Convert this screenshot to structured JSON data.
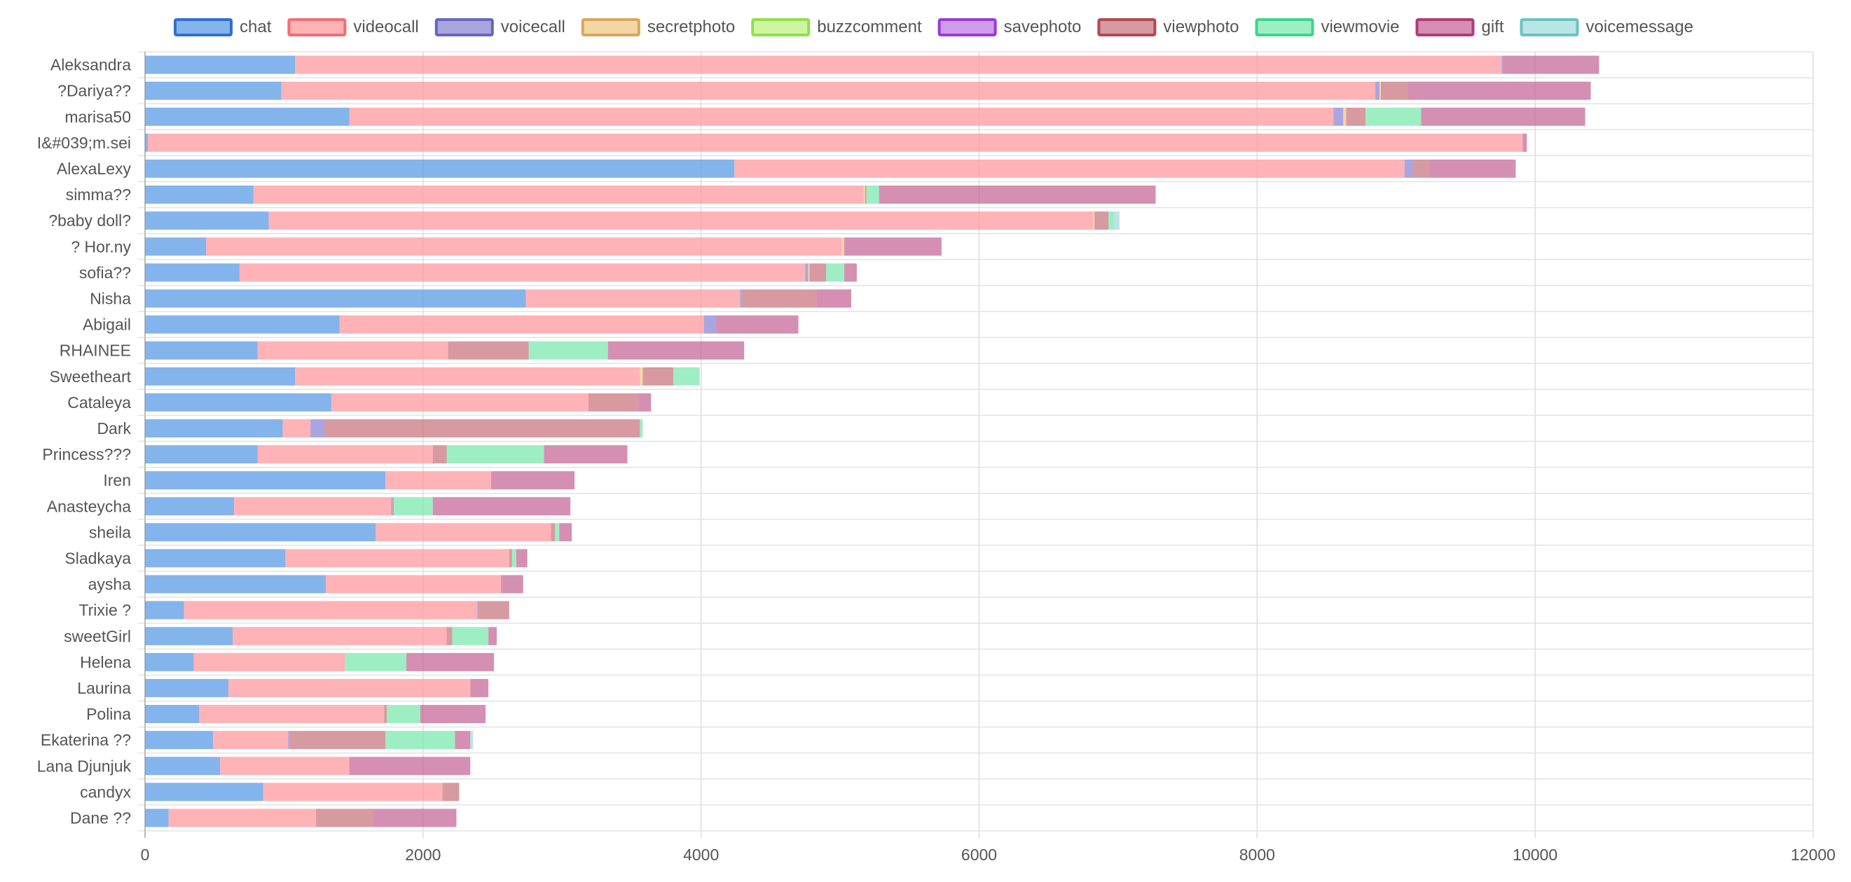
{
  "chart_data": {
    "type": "bar",
    "orientation": "horizontal",
    "stacked": true,
    "grid": true,
    "legend_position": "top",
    "xlim": [
      0,
      12000
    ],
    "x_ticks": [
      "0",
      "2000",
      "4000",
      "6000",
      "8000",
      "10000",
      "12000"
    ],
    "categories": [
      "Aleksandra",
      "?Dariya??",
      "marisa50",
      "I&#039;m.sei",
      "AlexaLexy",
      "simma??",
      "?baby doll?",
      "? Hor.ny",
      "sofia??",
      "Nisha",
      "Abigail",
      "RHAINEE",
      "Sweetheart",
      "Cataleya",
      "Dark",
      "Princess???",
      "Iren",
      "Anasteycha",
      "sheila",
      "Sladkaya",
      "aysha",
      "Trixie ?",
      "sweetGirl",
      "Helena",
      "Laurina",
      "Polina",
      "Ekaterina ??",
      "Lana Djunjuk",
      "candyx",
      "Dane ??"
    ],
    "series": [
      {
        "name": "chat",
        "color": "#5b9be6",
        "border": "#2f6fd0",
        "values": [
          1080,
          980,
          1470,
          20,
          4240,
          780,
          890,
          440,
          680,
          2740,
          1400,
          810,
          1080,
          1340,
          990,
          810,
          1730,
          640,
          1660,
          1010,
          1300,
          280,
          630,
          350,
          600,
          390,
          490,
          540,
          850,
          170
        ]
      },
      {
        "name": "videocall",
        "color": "#ff9a9f",
        "border": "#f26d75",
        "values": [
          8680,
          7870,
          7080,
          9890,
          4820,
          4390,
          5930,
          4570,
          4070,
          1540,
          2620,
          1370,
          2480,
          1850,
          200,
          1260,
          760,
          1130,
          1260,
          1610,
          1260,
          2110,
          1540,
          1090,
          1740,
          1330,
          540,
          930,
          1290,
          1060
        ]
      },
      {
        "name": "voicecall",
        "color": "#8c87d6",
        "border": "#6a64bf",
        "values": [
          10,
          30,
          70,
          0,
          60,
          0,
          0,
          0,
          20,
          10,
          90,
          0,
          0,
          0,
          100,
          0,
          0,
          10,
          0,
          0,
          0,
          10,
          0,
          0,
          0,
          0,
          10,
          0,
          0,
          0
        ]
      },
      {
        "name": "secretphoto",
        "color": "#f0c888",
        "border": "#d9a75a",
        "values": [
          0,
          10,
          20,
          0,
          0,
          10,
          10,
          20,
          10,
          0,
          0,
          0,
          20,
          0,
          0,
          0,
          0,
          0,
          0,
          0,
          0,
          0,
          0,
          0,
          0,
          0,
          0,
          0,
          0,
          0
        ]
      },
      {
        "name": "buzzcomment",
        "color": "#bff280",
        "border": "#8fe04b",
        "values": [
          0,
          0,
          0,
          0,
          0,
          0,
          0,
          0,
          0,
          0,
          0,
          0,
          0,
          0,
          0,
          0,
          0,
          0,
          0,
          0,
          0,
          0,
          0,
          0,
          0,
          0,
          0,
          0,
          0,
          0
        ]
      },
      {
        "name": "savephoto",
        "color": "#c27ae6",
        "border": "#9a3ad6",
        "values": [
          0,
          0,
          0,
          0,
          0,
          0,
          0,
          0,
          0,
          0,
          0,
          0,
          0,
          0,
          0,
          0,
          0,
          0,
          0,
          0,
          0,
          0,
          0,
          0,
          0,
          0,
          0,
          0,
          0,
          0
        ]
      },
      {
        "name": "viewphoto",
        "color": "#c97880",
        "border": "#b04a54",
        "values": [
          0,
          190,
          140,
          0,
          120,
          10,
          100,
          0,
          120,
          540,
          0,
          580,
          220,
          360,
          2270,
          100,
          0,
          10,
          30,
          20,
          10,
          220,
          40,
          0,
          0,
          20,
          690,
          0,
          120,
          410
        ]
      },
      {
        "name": "viewmovie",
        "color": "#7ee8b0",
        "border": "#3cd68a",
        "values": [
          0,
          0,
          400,
          0,
          0,
          90,
          40,
          0,
          130,
          0,
          0,
          570,
          190,
          0,
          20,
          700,
          0,
          280,
          30,
          30,
          0,
          0,
          260,
          440,
          0,
          240,
          500,
          0,
          0,
          0
        ]
      },
      {
        "name": "gift",
        "color": "#c76a9a",
        "border": "#b03c7a",
        "values": [
          690,
          1320,
          1180,
          30,
          620,
          1990,
          0,
          700,
          90,
          250,
          590,
          980,
          0,
          90,
          0,
          600,
          600,
          990,
          90,
          80,
          150,
          0,
          60,
          630,
          130,
          470,
          110,
          870,
          0,
          600
        ]
      },
      {
        "name": "voicemessage",
        "color": "#a3dcdc",
        "border": "#6cc2c2",
        "values": [
          0,
          0,
          0,
          0,
          0,
          0,
          40,
          0,
          0,
          0,
          0,
          0,
          0,
          0,
          0,
          0,
          0,
          0,
          0,
          0,
          0,
          0,
          0,
          0,
          0,
          0,
          20,
          0,
          0,
          0
        ]
      }
    ]
  }
}
